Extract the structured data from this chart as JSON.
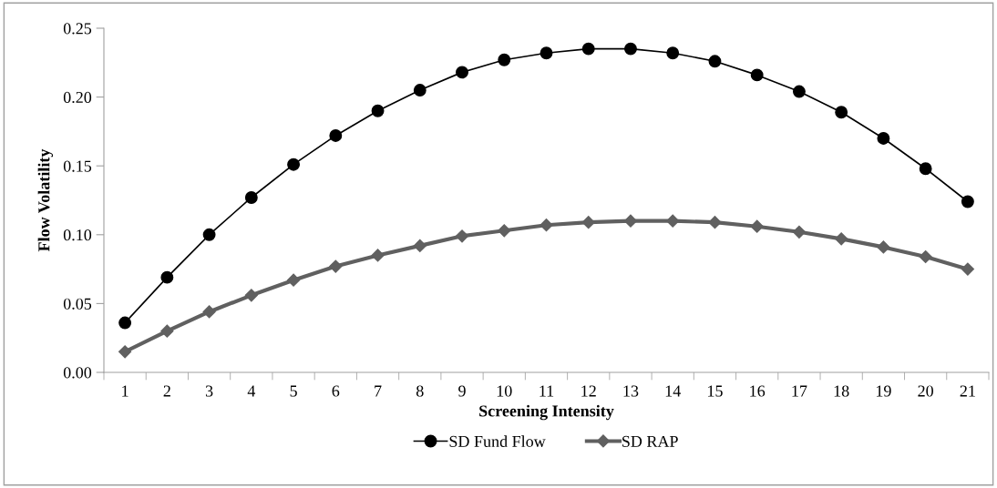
{
  "chart_data": {
    "type": "line",
    "xlabel": "Screening Intensity",
    "ylabel": "Flow Volatility",
    "categories": [
      "1",
      "2",
      "3",
      "4",
      "5",
      "6",
      "7",
      "8",
      "9",
      "10",
      "11",
      "12",
      "13",
      "14",
      "15",
      "16",
      "17",
      "18",
      "19",
      "20",
      "21"
    ],
    "series": [
      {
        "name": "SD Fund Flow",
        "color": "#000000",
        "marker": "circle",
        "values": [
          0.036,
          0.069,
          0.1,
          0.127,
          0.151,
          0.172,
          0.19,
          0.205,
          0.218,
          0.227,
          0.232,
          0.235,
          0.235,
          0.232,
          0.226,
          0.216,
          0.204,
          0.189,
          0.17,
          0.148,
          0.124
        ]
      },
      {
        "name": "SD RAP",
        "color": "#606060",
        "marker": "diamond",
        "values": [
          0.015,
          0.03,
          0.044,
          0.056,
          0.067,
          0.077,
          0.085,
          0.092,
          0.099,
          0.103,
          0.107,
          0.109,
          0.11,
          0.11,
          0.109,
          0.106,
          0.102,
          0.097,
          0.091,
          0.084,
          0.075
        ]
      }
    ],
    "ylim": [
      0,
      0.25
    ],
    "yticks": [
      {
        "value": 0,
        "label": "0.00"
      },
      {
        "value": 0.05,
        "label": "0.05"
      },
      {
        "value": 0.1,
        "label": "0.10"
      },
      {
        "value": 0.15,
        "label": "0.15"
      },
      {
        "value": 0.2,
        "label": "0.20"
      },
      {
        "value": 0.25,
        "label": "0.25"
      }
    ],
    "grid": false,
    "legend": "bottom"
  }
}
